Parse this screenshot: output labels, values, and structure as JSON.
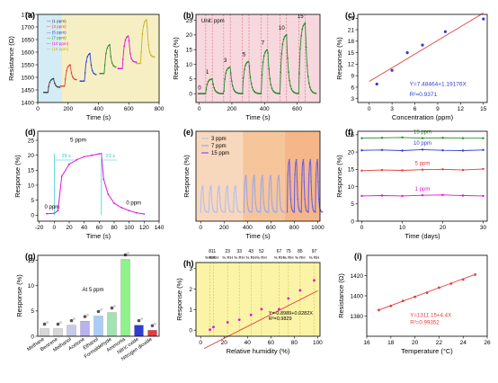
{
  "colors": {
    "axis": "#000000",
    "band_lightblue": "#d3ecf5",
    "band_lightyellow": "#f7efc4",
    "band_pink": "#f6d8de",
    "red": "#e23c3c",
    "green": "#2e8a2e",
    "blue": "#2e3fd0",
    "magenta": "#e014d6",
    "cyan": "#28c7c7",
    "orange_band": "#f6c69a",
    "lavender": "#aab2ee",
    "purple": "#7a6de6"
  },
  "panels": {
    "a": {
      "label": "(a)",
      "ylabel": "Resistance (Ω)",
      "xlabel": "Time (s)"
    },
    "b": {
      "label": "(b)",
      "ylabel": "Response (%)",
      "xlabel": "Time (s)",
      "unit_note": "Unit: ppm"
    },
    "c": {
      "label": "(c)",
      "ylabel": "Response (%)",
      "xlabel": "Concentration (ppm)",
      "equation": "Y=7.48464+1.19176X",
      "r2": "R²=0.9371"
    },
    "d": {
      "label": "(d)",
      "ylabel": "Response (%)",
      "xlabel": "Time (s)",
      "conc_label": "5 ppm",
      "start_label": "0 ppm",
      "end_label": "0 ppm",
      "resp_time": "29 s",
      "rec_time": "21 s"
    },
    "e": {
      "label": "(e)",
      "ylabel": "Response (%)",
      "xlabel": "Time (s)"
    },
    "f": {
      "label": "(f)",
      "ylabel": "Response (%)",
      "xlabel": "Time (days)"
    },
    "g": {
      "label": "(g)",
      "ylabel": "Response (%)",
      "note": "At 5 ppm"
    },
    "h": {
      "label": "(h)",
      "ylabel": "Response (%)",
      "xlabel": "Relative humidity (%)",
      "equation": "Y=-0.8989+0.0282X",
      "r2": "R²=0.9829"
    },
    "i": {
      "label": "(i)",
      "ylabel": "Resistance (Ω)",
      "xlabel": "Temperature (°C)",
      "equation": "Y=1311.15+4.4X",
      "r2": "R²=0.99352"
    }
  },
  "chart_data": [
    {
      "panel": "a",
      "type": "line",
      "xlim": [
        0,
        800
      ],
      "ylim": [
        1400,
        1750
      ],
      "xticks": [
        "0",
        "200",
        "400",
        "600",
        "800"
      ],
      "yticks": [
        "1400",
        "1450",
        "1500",
        "1550",
        "1600",
        "1650",
        "1700",
        "1750"
      ],
      "series": [
        {
          "name": "(1 ppm)",
          "color": "#3a3a3a",
          "x": [
            70,
            105,
            140
          ],
          "y": [
            1455,
            1495,
            1460
          ]
        },
        {
          "name": "(3 ppm)",
          "color": "#e23c3c",
          "x": [
            180,
            215,
            250
          ],
          "y": [
            1480,
            1550,
            1490
          ]
        },
        {
          "name": "(5 ppm)",
          "color": "#2e3fd0",
          "x": [
            310,
            345,
            380
          ],
          "y": [
            1500,
            1595,
            1510
          ]
        },
        {
          "name": "(7 ppm)",
          "color": "#2e8a2e",
          "x": [
            440,
            475,
            510
          ],
          "y": [
            1530,
            1630,
            1540
          ]
        },
        {
          "name": "(10 ppm)",
          "color": "#e014d6",
          "x": [
            560,
            600,
            640
          ],
          "y": [
            1550,
            1665,
            1560
          ]
        },
        {
          "name": "(15 ppm)",
          "color": "#c7b224",
          "x": [
            680,
            720,
            760
          ],
          "y": [
            1570,
            1730,
            1580
          ]
        }
      ]
    },
    {
      "panel": "b",
      "type": "line",
      "xlim": [
        -20,
        740
      ],
      "ylim": [
        -3,
        27
      ],
      "xticks": [
        "0",
        "200",
        "400",
        "600"
      ],
      "yticks": [
        "0",
        "5",
        "10",
        "15",
        "20",
        "25"
      ],
      "annotations": [
        "0",
        "1",
        "3",
        "5",
        "7",
        "10",
        "15"
      ],
      "pulses": [
        {
          "conc": "1",
          "start": 40,
          "peak": 5
        },
        {
          "conc": "3",
          "start": 150,
          "peak": 9
        },
        {
          "conc": "5",
          "start": 265,
          "peak": 11
        },
        {
          "conc": "7",
          "start": 380,
          "peak": 15
        },
        {
          "conc": "10",
          "start": 495,
          "peak": 20
        },
        {
          "conc": "15",
          "start": 610,
          "peak": 24
        }
      ]
    },
    {
      "panel": "c",
      "type": "scatter",
      "xlim": [
        -1.5,
        15.5
      ],
      "ylim": [
        2,
        25
      ],
      "xticks": [
        "0",
        "3",
        "6",
        "9",
        "12",
        "15"
      ],
      "yticks": [
        "3",
        "6",
        "9",
        "12",
        "15",
        "18",
        "21",
        "24"
      ],
      "x": [
        1,
        3,
        5,
        7,
        10,
        15
      ],
      "y": [
        6.8,
        10.4,
        15.0,
        17.0,
        20.5,
        23.8
      ],
      "fit": {
        "intercept": 7.48464,
        "slope": 1.19176
      }
    },
    {
      "panel": "d",
      "type": "line",
      "xlim": [
        -22,
        140
      ],
      "ylim": [
        -2,
        28
      ],
      "xticks": [
        "-20",
        "0",
        "20",
        "40",
        "60",
        "80",
        "100",
        "120",
        "140"
      ],
      "yticks": [
        "0",
        "5",
        "10",
        "15",
        "20",
        "25"
      ],
      "x": [
        -10,
        0,
        5,
        10,
        20,
        30,
        40,
        50,
        60,
        63,
        66,
        72,
        80,
        90,
        100,
        110,
        120
      ],
      "y": [
        0.5,
        0.6,
        1.5,
        13,
        17,
        18.5,
        19.5,
        20,
        20.5,
        20.5,
        12,
        7,
        4,
        2.5,
        1.5,
        0.8,
        0.4
      ]
    },
    {
      "panel": "e",
      "type": "line",
      "xlim": [
        -40,
        1020
      ],
      "xticks": [
        "0",
        "200",
        "400",
        "600",
        "800",
        "1000"
      ],
      "series": [
        {
          "name": "3 ppm",
          "color": "#b6bef2",
          "pulses": [
            0,
            70,
            140,
            210,
            280
          ]
        },
        {
          "name": "7 ppm",
          "color": "#9da6ee",
          "pulses": [
            370,
            440,
            510,
            580,
            650
          ]
        },
        {
          "name": "15 ppm",
          "color": "#6f62e0",
          "pulses": [
            740,
            800,
            860,
            920,
            980
          ]
        }
      ]
    },
    {
      "panel": "f",
      "type": "line",
      "xlim": [
        -1,
        31
      ],
      "ylim": [
        0,
        26
      ],
      "xticks": [
        "0",
        "10",
        "20",
        "30"
      ],
      "yticks": [
        "0",
        "5",
        "10",
        "15",
        "20",
        "25"
      ],
      "x": [
        0,
        5,
        10,
        15,
        20,
        25,
        30
      ],
      "series": [
        {
          "name": "15 ppm",
          "color": "#2e8a2e",
          "values": [
            24.0,
            24.1,
            24.2,
            24.0,
            24.1,
            24.0,
            24.0
          ]
        },
        {
          "name": "10 ppm",
          "color": "#2e3fd0",
          "values": [
            20.5,
            20.6,
            20.4,
            20.7,
            20.5,
            20.4,
            20.6
          ]
        },
        {
          "name": "5 ppm",
          "color": "#e23c3c",
          "values": [
            14.6,
            14.8,
            14.7,
            14.9,
            15.0,
            14.8,
            15.1
          ]
        },
        {
          "name": "1 ppm",
          "color": "#e014d6",
          "values": [
            7.3,
            7.4,
            7.3,
            7.5,
            7.6,
            7.4,
            7.3
          ]
        }
      ]
    },
    {
      "panel": "g",
      "type": "bar",
      "ylim": [
        0,
        16
      ],
      "yticks": [
        "0",
        "5",
        "10",
        "15"
      ],
      "categories": [
        "Methane",
        "Benzene",
        "Methanol",
        "Acetone",
        "Ethanol",
        "Formaldehyde",
        "Ammonia",
        "Nitric oxide",
        "Nitrogen dioxide"
      ],
      "values": [
        1.5,
        1.5,
        2.2,
        3.0,
        4.0,
        4.7,
        15.2,
        2.2,
        1.2
      ],
      "bar_colors": [
        "#d7d7d7",
        "#d7d7d7",
        "#c9c9ea",
        "#b9b2f0",
        "#a9cdf6",
        "#a3e3b1",
        "#8ff28a",
        "#2e3fd0",
        "#e23c3c"
      ]
    },
    {
      "panel": "h",
      "type": "scatter",
      "xlim": [
        -4,
        102
      ],
      "ylim": [
        -0.3,
        3.3
      ],
      "xticks": [
        "0",
        "20",
        "40",
        "60",
        "80",
        "100"
      ],
      "yticks": [
        "0",
        "1",
        "2",
        "3"
      ],
      "top_ticks": [
        "8",
        "11",
        "23",
        "33",
        "43",
        "52",
        "67",
        "75",
        "85",
        "97"
      ],
      "top_unit": "% RH",
      "x": [
        8,
        11,
        23,
        33,
        43,
        52,
        67,
        75,
        85,
        97
      ],
      "y": [
        0.02,
        0.15,
        0.38,
        0.51,
        0.74,
        1.02,
        1.02,
        1.55,
        1.94,
        2.43
      ],
      "fit": {
        "intercept": -0.8989,
        "slope": 0.0282
      }
    },
    {
      "panel": "i",
      "type": "scatter",
      "xlim": [
        16,
        26
      ],
      "ylim": [
        1360,
        1440
      ],
      "xticks": [
        "16",
        "18",
        "20",
        "22",
        "24",
        "26"
      ],
      "yticks": [
        "1380",
        "1400",
        "1420"
      ],
      "x": [
        17,
        18,
        19,
        20,
        21,
        22,
        23,
        24,
        25
      ],
      "y": [
        1386,
        1390,
        1395,
        1399,
        1403,
        1408,
        1412,
        1416,
        1421
      ],
      "fit": {
        "intercept": 1311.15,
        "slope": 4.4
      }
    }
  ]
}
